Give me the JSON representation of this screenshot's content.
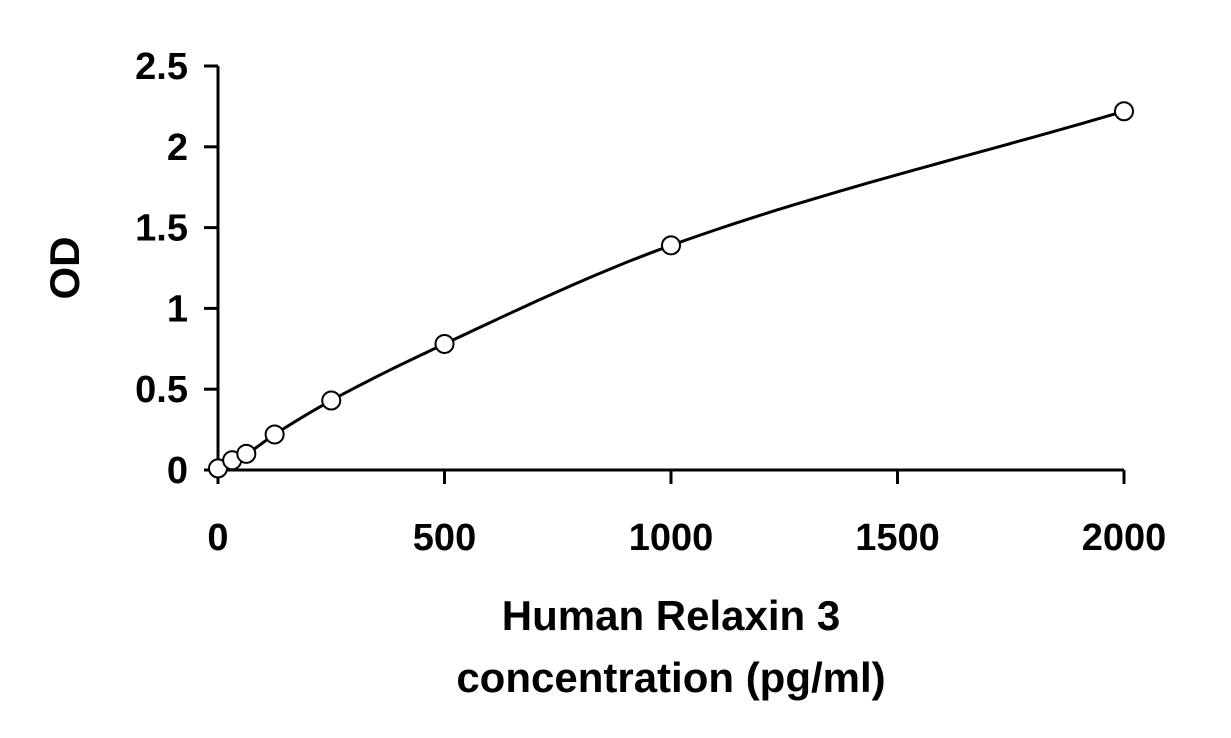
{
  "chart_data": {
    "type": "scatter",
    "title": "",
    "xlabel_lines": [
      "Human Relaxin 3",
      "concentration (pg/ml)"
    ],
    "ylabel": "OD",
    "xlim": [
      0,
      2000
    ],
    "ylim": [
      0,
      2.5
    ],
    "x_ticks": [
      0,
      500,
      1000,
      1500,
      2000
    ],
    "x_tick_labels": [
      "0",
      "500",
      "1000",
      "1500",
      "2000"
    ],
    "y_ticks": [
      0,
      0.5,
      1,
      1.5,
      2,
      2.5
    ],
    "y_tick_labels": [
      "0",
      "0.5",
      "1",
      "1.5",
      "2",
      "2.5"
    ],
    "grid": false,
    "legend": "none",
    "series": [
      {
        "marker": "open-circle",
        "fit": "smooth-curve",
        "x": [
          0,
          31.25,
          62.5,
          125,
          250,
          500,
          1000,
          2000
        ],
        "y": [
          0.01,
          0.06,
          0.1,
          0.22,
          0.43,
          0.78,
          1.39,
          2.22
        ]
      }
    ],
    "colors": {
      "line": "#000000",
      "marker_stroke": "#000000",
      "marker_fill": "#ffffff"
    }
  }
}
